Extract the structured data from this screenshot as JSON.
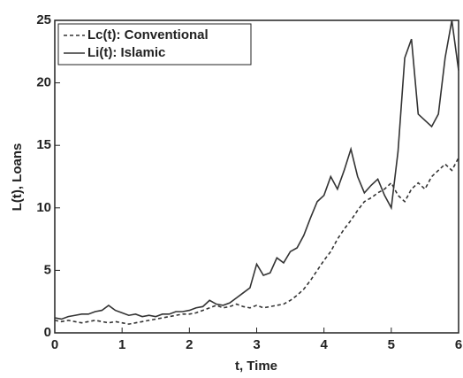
{
  "chart_data": {
    "type": "line",
    "x_label": "t, Time",
    "y_label": "L(t), Loans",
    "x": [
      0,
      0.1,
      0.2,
      0.3,
      0.4,
      0.5,
      0.6,
      0.7,
      0.8,
      0.9,
      1,
      1.1,
      1.2,
      1.3,
      1.4,
      1.5,
      1.6,
      1.7,
      1.8,
      1.9,
      2,
      2.1,
      2.2,
      2.3,
      2.4,
      2.5,
      2.6,
      2.7,
      2.8,
      2.9,
      3,
      3.1,
      3.2,
      3.3,
      3.4,
      3.5,
      3.6,
      3.7,
      3.8,
      3.9,
      4,
      4.1,
      4.2,
      4.3,
      4.4,
      4.5,
      4.6,
      4.7,
      4.8,
      4.9,
      5,
      5.1,
      5.2,
      5.3,
      5.4,
      5.5,
      5.6,
      5.7,
      5.8,
      5.9,
      6
    ],
    "series": [
      {
        "name": "Lc(t): Conventional",
        "color": "#333333",
        "line_style": "dashed",
        "values": [
          1.0,
          0.9,
          1.0,
          0.9,
          0.8,
          0.9,
          1.0,
          0.9,
          0.8,
          0.9,
          0.8,
          0.7,
          0.8,
          0.9,
          1.0,
          1.1,
          1.2,
          1.3,
          1.4,
          1.5,
          1.5,
          1.6,
          1.8,
          2.0,
          2.2,
          2.0,
          2.1,
          2.3,
          2.1,
          2.0,
          2.2,
          2.0,
          2.1,
          2.2,
          2.3,
          2.6,
          3.0,
          3.5,
          4.2,
          5.0,
          5.8,
          6.5,
          7.5,
          8.3,
          9.0,
          9.8,
          10.5,
          10.8,
          11.2,
          11.5,
          12.0,
          11.0,
          10.5,
          11.5,
          12.0,
          11.5,
          12.5,
          13.0,
          13.5,
          13.0,
          14.0
        ]
      },
      {
        "name": "Li(t): Islamic",
        "color": "#333333",
        "line_style": "solid",
        "values": [
          1.2,
          1.1,
          1.3,
          1.4,
          1.5,
          1.5,
          1.7,
          1.8,
          2.2,
          1.8,
          1.6,
          1.4,
          1.5,
          1.3,
          1.4,
          1.3,
          1.5,
          1.5,
          1.7,
          1.7,
          1.8,
          2.0,
          2.1,
          2.6,
          2.3,
          2.2,
          2.4,
          2.8,
          3.2,
          3.6,
          5.5,
          4.6,
          4.8,
          6.0,
          5.6,
          6.5,
          6.8,
          7.8,
          9.2,
          10.5,
          11.0,
          12.5,
          11.5,
          13.0,
          14.7,
          12.5,
          11.2,
          11.8,
          12.3,
          11.0,
          10.0,
          14.5,
          22.0,
          23.5,
          17.5,
          17.0,
          16.5,
          17.5,
          22.0,
          25.0,
          21.0
        ]
      }
    ],
    "xlim": [
      0,
      6
    ],
    "xticks": [
      0,
      1,
      2,
      3,
      4,
      5,
      6
    ],
    "ylim": [
      0,
      25
    ],
    "yticks": [
      0,
      5,
      10,
      15,
      20,
      25
    ],
    "legend": "upper left"
  }
}
